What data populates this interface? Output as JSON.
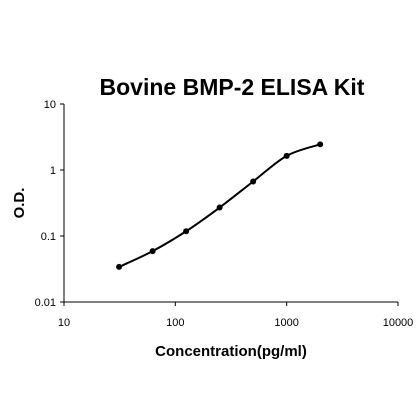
{
  "chart_data": {
    "type": "scatter",
    "title": "Bovine BMP-2 ELISA Kit",
    "xlabel": "Concentration(pg/ml)",
    "ylabel": "O.D.",
    "x_scale": "log",
    "y_scale": "log",
    "xlim": [
      10,
      10000
    ],
    "ylim": [
      0.01,
      10
    ],
    "x_ticks": [
      "10",
      "100",
      "1000",
      "10000"
    ],
    "y_ticks": [
      "0.01",
      "0.1",
      "1",
      "10"
    ],
    "grid": false,
    "legend": "none",
    "series": [
      {
        "x": [
          31.25,
          62.5,
          125,
          250,
          500,
          1000,
          2000
        ],
        "y": [
          0.034,
          0.059,
          0.118,
          0.27,
          0.67,
          1.64,
          2.45
        ]
      }
    ],
    "colors": {
      "line": "#000000",
      "marker": "#000000"
    }
  }
}
